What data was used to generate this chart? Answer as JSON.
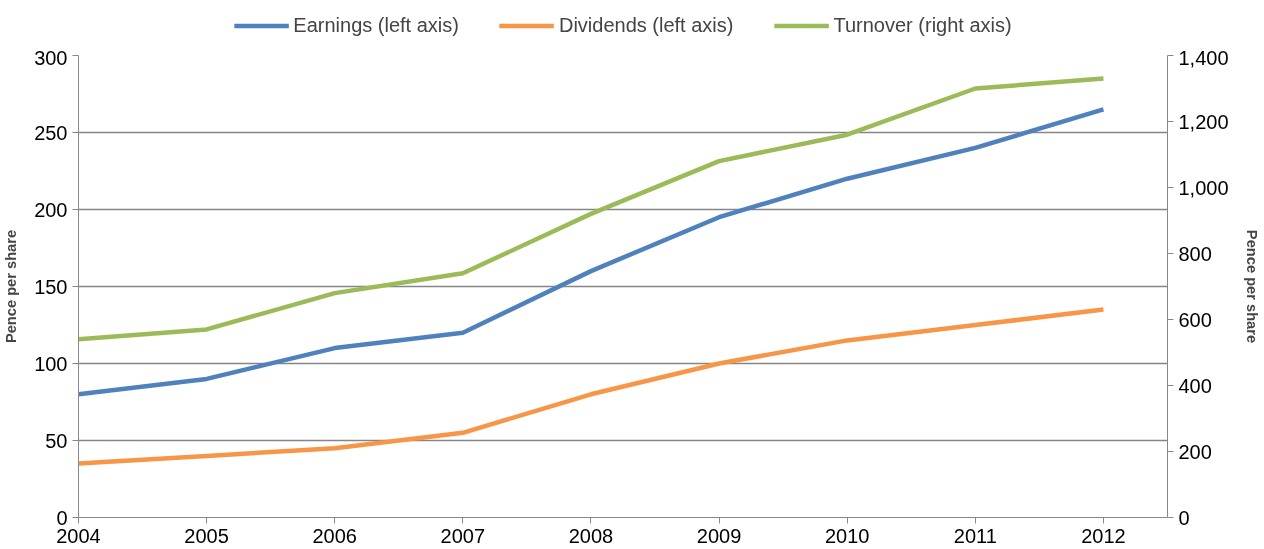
{
  "chart_data": {
    "type": "line",
    "ylabel": "Pence per share",
    "y2label": "Pence per share",
    "x": [
      2004,
      2005,
      2006,
      2007,
      2008,
      2009,
      2010,
      2011,
      2012
    ],
    "xlim": [
      2004,
      2012.5
    ],
    "xticks": [
      2004,
      2005,
      2006,
      2007,
      2008,
      2009,
      2010,
      2011,
      2012
    ],
    "ylim": [
      0,
      300
    ],
    "yticks": [
      0,
      50,
      100,
      150,
      200,
      250,
      300
    ],
    "y2lim": [
      0,
      1400
    ],
    "y2ticks": [
      0,
      {
        "value": 200,
        "label": "200"
      },
      {
        "value": 400,
        "label": "400"
      },
      {
        "value": 600,
        "label": "600"
      },
      {
        "value": 800,
        "label": "800"
      },
      {
        "value": 1000,
        "label": "1,000"
      },
      {
        "value": 1200,
        "label": "1,200"
      },
      {
        "value": 1400,
        "label": "1,400"
      }
    ],
    "grid": "y",
    "legend": "top",
    "marker": "none",
    "line_style": "solid",
    "series": [
      {
        "name": "Earnings (left axis)",
        "color": "#4f81bd",
        "values": [
          80,
          90,
          110,
          120,
          160,
          195,
          220,
          240,
          265
        ]
      },
      {
        "name": "Dividends (left axis)",
        "color": "#f79646",
        "values": [
          35,
          40,
          45,
          55,
          80,
          100,
          115,
          125,
          135
        ]
      },
      {
        "name": "Turnover (right axis)",
        "color": "#9bbb59",
        "axis": "y2",
        "values": [
          540,
          570,
          680,
          740,
          920,
          1080,
          1160,
          1300,
          1330
        ]
      }
    ]
  }
}
